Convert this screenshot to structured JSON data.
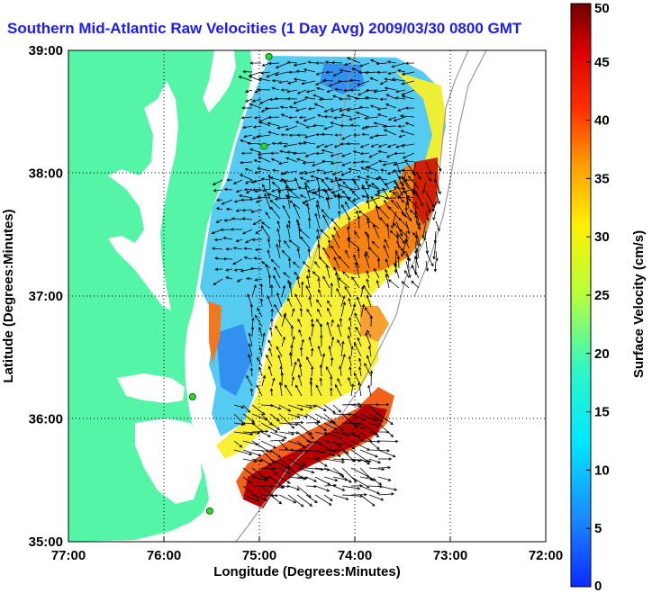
{
  "title": "Southern Mid-Atlantic Raw Velocities (1 Day Avg) 2009/03/30 0800 GMT",
  "map": {
    "xlabel": "Longitude (Degrees:Minutes)",
    "ylabel": "Latitude (Degrees:Minutes)",
    "lon_range": [
      -77,
      -72
    ],
    "lat_range": [
      35,
      39
    ],
    "x_ticks": [
      "77:00",
      "76:00",
      "75:00",
      "74:00",
      "73:00",
      "72:00"
    ],
    "y_ticks": [
      "35:00",
      "36:00",
      "37:00",
      "38:00",
      "39:00"
    ],
    "grid": "dotted",
    "land_color": "#55f5a8",
    "vector_color": "#000000"
  },
  "colorbar": {
    "label": "Surface Velocity (cm/s)",
    "ticks": [
      "0",
      "5",
      "10",
      "15",
      "20",
      "25",
      "30",
      "35",
      "40",
      "45",
      "50"
    ],
    "range": [
      0,
      50
    ],
    "colormap": "jet"
  },
  "stations": [
    {
      "lon": -74.9,
      "lat": 38.95
    },
    {
      "lon": -74.95,
      "lat": 38.22
    },
    {
      "lon": -75.7,
      "lat": 36.18
    },
    {
      "lon": -75.52,
      "lat": 35.25
    }
  ]
}
